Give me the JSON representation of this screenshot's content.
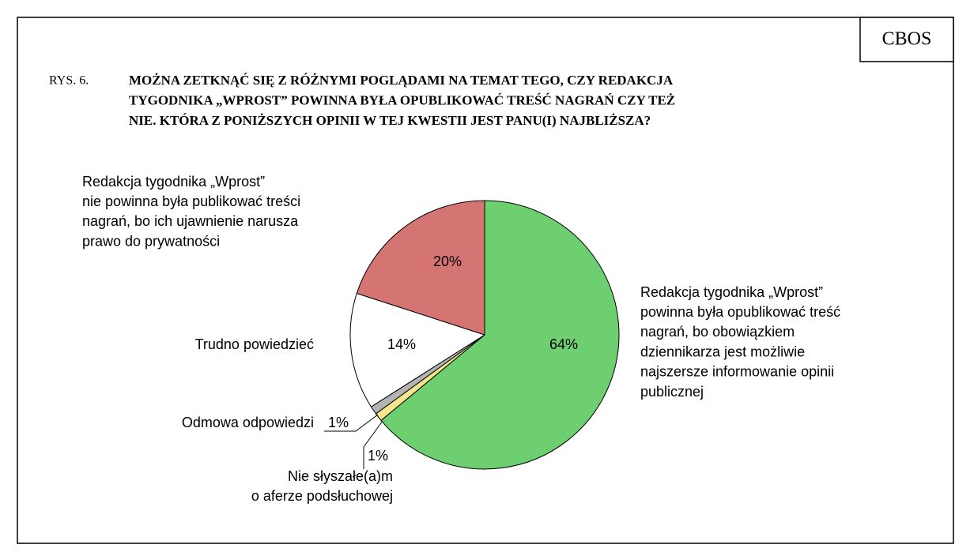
{
  "source": "CBOS",
  "figure_number": "RYS. 6.",
  "chart_data": {
    "type": "pie",
    "title": [
      "MOŻNA ZETKNĄĆ SIĘ Z RÓŻNYMI POGLĄDAMI NA TEMAT TEGO, CZY REDAKCJA",
      "TYGODNIKA „WPROST” POWINNA BYŁA OPUBLIKOWAĆ TREŚĆ NAGRAŃ CZY TEŻ",
      "NIE. KTÓRA Z PONIŻSZYCH OPINII W TEJ KWESTII JEST PANU(I) NAJBLIŻSZA?"
    ],
    "categories": [
      [
        "Redakcja tygodnika „Wprost”",
        "powinna była opublikować treść",
        "nagrań, bo obowiązkiem",
        "dziennikarza jest możliwie",
        "najszersze informowanie opinii",
        "publicznej"
      ],
      [
        "Nie słyszałe(a)m",
        "o aferze podsłuchowej"
      ],
      [
        "Odmowa odpowiedzi"
      ],
      [
        "Trudno powiedzieć"
      ],
      [
        "Redakcja tygodnika „Wprost”",
        "nie powinna była publikować treści",
        "nagrań, bo ich ujawnienie narusza",
        "prawo do prywatności"
      ]
    ],
    "values": [
      64,
      1,
      1,
      14,
      20
    ],
    "value_labels": [
      "64%",
      "1%",
      "1%",
      "14%",
      "20%"
    ],
    "colors": [
      "#6dcf70",
      "#f5e58c",
      "#b3b3b3",
      "#ffffff",
      "#d57573"
    ]
  }
}
